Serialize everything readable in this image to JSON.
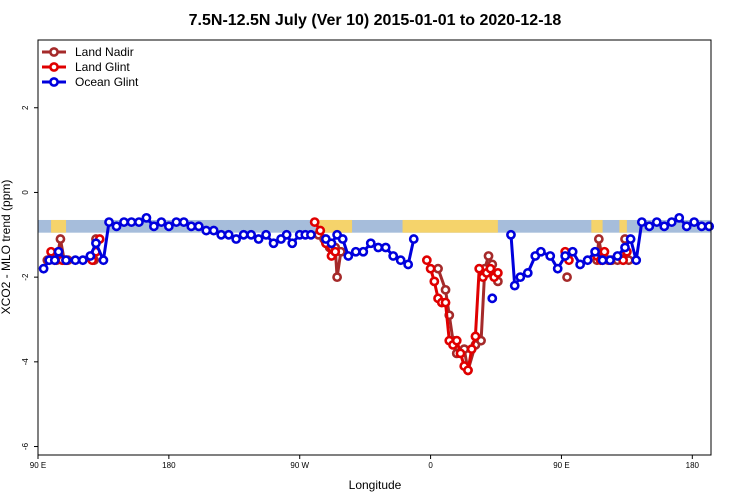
{
  "chart_data": {
    "type": "line",
    "title": "7.5N-12.5N July (Ver 10)   2015-01-01 to 2020-12-18",
    "xlabel": "Longitude",
    "ylabel": "XCO2 - MLO trend (ppm)",
    "xlim": [
      0,
      360
    ],
    "ylim": [
      -6.2,
      3.6
    ],
    "x_ticks": [
      {
        "value": 0,
        "label": "90 E"
      },
      {
        "value": 70,
        "label": "180"
      },
      {
        "value": 140,
        "label": "90 W"
      },
      {
        "value": 210,
        "label": "0"
      },
      {
        "value": 280,
        "label": "90 E"
      },
      {
        "value": 350,
        "label": "180"
      }
    ],
    "y_ticks": [
      2,
      0,
      -2,
      -4,
      -6
    ],
    "legend": {
      "position": "top-left"
    },
    "land_band": {
      "y_range": [
        -0.95,
        -0.65
      ],
      "ocean_color": "#a6bddb",
      "land_color": "#f5d36b",
      "land_segments": [
        [
          7,
          15
        ],
        [
          149,
          168
        ],
        [
          195,
          246
        ],
        [
          296,
          302
        ],
        [
          311,
          315
        ]
      ]
    },
    "series": [
      {
        "name": "Land Nadir",
        "color": "#a52a2a",
        "segments": [
          [
            [
              5,
              -1.6
            ],
            [
              10,
              -1.6
            ],
            [
              12,
              -1.1
            ],
            [
              14,
              -1.6
            ],
            [
              16,
              -1.6
            ]
          ],
          [
            [
              30,
              -1.6
            ],
            [
              31,
              -1.1
            ]
          ],
          [
            [
              150,
              -1.0
            ],
            [
              153,
              -1.1
            ],
            [
              156,
              -1.3
            ],
            [
              159,
              -1.3
            ],
            [
              160,
              -2.0
            ],
            [
              162,
              -1.4
            ]
          ],
          [
            [
              214,
              -1.8
            ],
            [
              218,
              -2.3
            ],
            [
              220,
              -2.9
            ],
            [
              222,
              -3.5
            ],
            [
              224,
              -3.8
            ],
            [
              228,
              -3.7
            ],
            [
              230,
              -4.2
            ],
            [
              234,
              -3.6
            ],
            [
              237,
              -3.5
            ],
            [
              239,
              -1.8
            ],
            [
              241,
              -1.5
            ],
            [
              243,
              -1.7
            ],
            [
              244,
              -1.9
            ],
            [
              246,
              -2.1
            ]
          ],
          [
            [
              283,
              -2.0
            ]
          ],
          [
            [
              299,
              -1.6
            ],
            [
              300,
              -1.1
            ],
            [
              302,
              -1.6
            ],
            [
              305,
              -1.6
            ],
            [
              307,
              -1.6
            ],
            [
              310,
              -1.6
            ]
          ],
          [
            [
              313,
              -1.6
            ],
            [
              314,
              -1.1
            ],
            [
              316,
              -1.6
            ]
          ]
        ]
      },
      {
        "name": "Land Glint",
        "color": "#e00000",
        "segments": [
          [
            [
              7,
              -1.4
            ],
            [
              9,
              -1.6
            ],
            [
              11,
              -1.4
            ],
            [
              13,
              -1.6
            ],
            [
              15,
              -1.6
            ]
          ],
          [
            [
              29,
              -1.6
            ],
            [
              31,
              -1.4
            ],
            [
              33,
              -1.1
            ]
          ],
          [
            [
              148,
              -0.7
            ],
            [
              151,
              -0.9
            ],
            [
              154,
              -1.2
            ],
            [
              157,
              -1.5
            ],
            [
              159,
              -1.4
            ]
          ],
          [
            [
              208,
              -1.6
            ],
            [
              210,
              -1.8
            ],
            [
              212,
              -2.1
            ],
            [
              214,
              -2.5
            ],
            [
              216,
              -2.6
            ],
            [
              218,
              -2.6
            ],
            [
              220,
              -3.5
            ],
            [
              222,
              -3.6
            ],
            [
              224,
              -3.5
            ],
            [
              226,
              -3.8
            ],
            [
              228,
              -4.1
            ],
            [
              230,
              -4.2
            ],
            [
              232,
              -3.7
            ],
            [
              234,
              -3.4
            ],
            [
              236,
              -1.8
            ],
            [
              238,
              -2.0
            ],
            [
              240,
              -1.9
            ],
            [
              242,
              -1.8
            ],
            [
              244,
              -2.0
            ],
            [
              246,
              -1.9
            ]
          ],
          [
            [
              282,
              -1.4
            ],
            [
              284,
              -1.6
            ]
          ],
          [
            [
              299,
              -1.5
            ],
            [
              301,
              -1.6
            ],
            [
              303,
              -1.4
            ]
          ],
          [
            [
              313,
              -1.6
            ],
            [
              315,
              -1.4
            ]
          ]
        ]
      },
      {
        "name": "Ocean Glint",
        "color": "#0000dd",
        "segments": [
          [
            [
              3,
              -1.8
            ],
            [
              6,
              -1.6
            ],
            [
              9,
              -1.6
            ],
            [
              11,
              -1.4
            ],
            [
              15,
              -1.6
            ],
            [
              20,
              -1.6
            ],
            [
              24,
              -1.6
            ],
            [
              28,
              -1.5
            ],
            [
              31,
              -1.2
            ],
            [
              35,
              -1.6
            ],
            [
              38,
              -0.7
            ],
            [
              42,
              -0.8
            ],
            [
              46,
              -0.7
            ],
            [
              50,
              -0.7
            ],
            [
              54,
              -0.7
            ],
            [
              58,
              -0.6
            ],
            [
              62,
              -0.8
            ],
            [
              66,
              -0.7
            ],
            [
              70,
              -0.8
            ],
            [
              74,
              -0.7
            ],
            [
              78,
              -0.7
            ],
            [
              82,
              -0.8
            ],
            [
              86,
              -0.8
            ],
            [
              90,
              -0.9
            ],
            [
              94,
              -0.9
            ],
            [
              98,
              -1.0
            ],
            [
              102,
              -1.0
            ],
            [
              106,
              -1.1
            ],
            [
              110,
              -1.0
            ],
            [
              114,
              -1.0
            ],
            [
              118,
              -1.1
            ],
            [
              122,
              -1.0
            ],
            [
              126,
              -1.2
            ],
            [
              130,
              -1.1
            ],
            [
              133,
              -1.0
            ],
            [
              136,
              -1.2
            ],
            [
              140,
              -1.0
            ],
            [
              143,
              -1.0
            ],
            [
              146,
              -1.0
            ]
          ],
          [
            [
              154,
              -1.1
            ],
            [
              157,
              -1.2
            ],
            [
              160,
              -1.0
            ],
            [
              163,
              -1.1
            ],
            [
              166,
              -1.5
            ],
            [
              170,
              -1.4
            ],
            [
              174,
              -1.4
            ],
            [
              178,
              -1.2
            ],
            [
              182,
              -1.3
            ],
            [
              186,
              -1.3
            ],
            [
              190,
              -1.5
            ],
            [
              194,
              -1.6
            ],
            [
              198,
              -1.7
            ],
            [
              201,
              -1.1
            ]
          ],
          [
            [
              243,
              -2.5
            ]
          ],
          [
            [
              253,
              -1.0
            ],
            [
              255,
              -2.2
            ],
            [
              258,
              -2.0
            ],
            [
              262,
              -1.9
            ],
            [
              266,
              -1.5
            ],
            [
              269,
              -1.4
            ],
            [
              274,
              -1.5
            ],
            [
              278,
              -1.8
            ],
            [
              282,
              -1.5
            ],
            [
              286,
              -1.4
            ],
            [
              290,
              -1.7
            ],
            [
              294,
              -1.6
            ],
            [
              298,
              -1.4
            ],
            [
              302,
              -1.6
            ],
            [
              306,
              -1.6
            ],
            [
              310,
              -1.5
            ],
            [
              314,
              -1.3
            ],
            [
              317,
              -1.1
            ],
            [
              320,
              -1.6
            ],
            [
              323,
              -0.7
            ],
            [
              327,
              -0.8
            ],
            [
              331,
              -0.7
            ],
            [
              335,
              -0.8
            ],
            [
              339,
              -0.7
            ],
            [
              343,
              -0.6
            ],
            [
              347,
              -0.8
            ],
            [
              351,
              -0.7
            ],
            [
              355,
              -0.8
            ],
            [
              359,
              -0.8
            ]
          ]
        ]
      }
    ]
  }
}
